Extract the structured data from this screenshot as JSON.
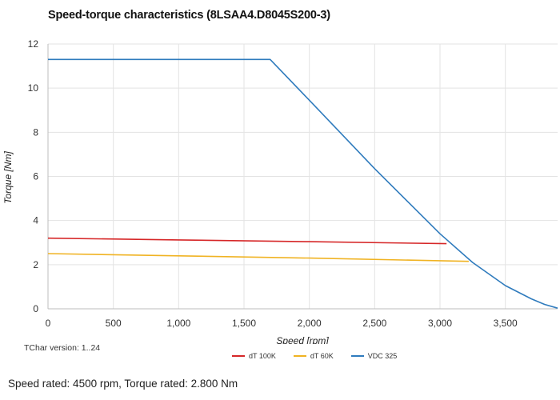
{
  "title": "Speed-torque characteristics (8LSAA4.D8045S200-3)",
  "version_text": "TChar version: 1..24",
  "footer_text": "Speed rated: 4500 rpm, Torque rated: 2.800 Nm",
  "chart_data": {
    "type": "line",
    "xlabel": "Speed [rpm]",
    "ylabel": "Torque [Nm]",
    "xlim": [
      0,
      3900
    ],
    "ylim": [
      0,
      12
    ],
    "x_ticks": [
      0,
      500,
      1000,
      1500,
      2000,
      2500,
      3000,
      3500
    ],
    "x_tick_labels": [
      "0",
      "500",
      "1,000",
      "1,500",
      "2,000",
      "2,500",
      "3,000",
      "3,500"
    ],
    "y_ticks": [
      0,
      2,
      4,
      6,
      8,
      10,
      12
    ],
    "y_tick_labels": [
      "0",
      "2",
      "4",
      "6",
      "8",
      "10",
      "12"
    ],
    "grid": true,
    "legend_position": "bottom",
    "series": [
      {
        "name": "dT 100K",
        "color": "#d62728",
        "points": [
          [
            0,
            3.2
          ],
          [
            1000,
            3.12
          ],
          [
            2000,
            3.04
          ],
          [
            3050,
            2.95
          ]
        ]
      },
      {
        "name": "dT 60K",
        "color": "#f0b323",
        "points": [
          [
            0,
            2.5
          ],
          [
            1000,
            2.4
          ],
          [
            2000,
            2.3
          ],
          [
            3220,
            2.15
          ]
        ]
      },
      {
        "name": "VDC 325",
        "color": "#2f7bbd",
        "points": [
          [
            0,
            11.3
          ],
          [
            1650,
            11.3
          ],
          [
            1700,
            11.3
          ],
          [
            2000,
            9.45
          ],
          [
            2500,
            6.35
          ],
          [
            3000,
            3.4
          ],
          [
            3250,
            2.1
          ],
          [
            3500,
            1.05
          ],
          [
            3700,
            0.45
          ],
          [
            3800,
            0.2
          ],
          [
            3900,
            0.03
          ]
        ]
      }
    ]
  }
}
